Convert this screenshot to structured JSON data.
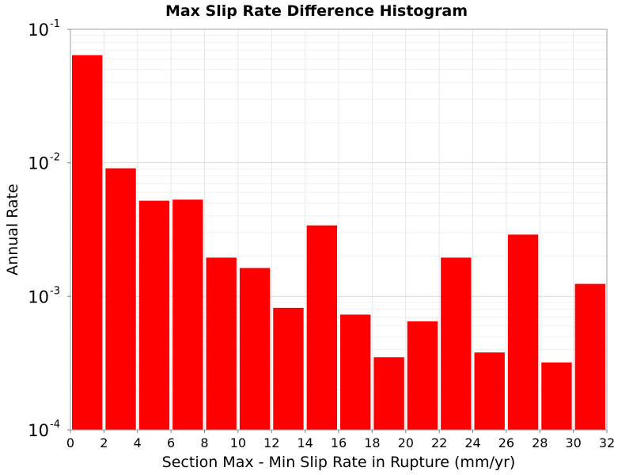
{
  "chart_data": {
    "type": "bar",
    "title": "Max Slip Rate Difference Histogram",
    "xlabel": "Section Max - Min Slip Rate in Rupture (mm/yr)",
    "ylabel": "Annual Rate",
    "xlim": [
      0,
      32
    ],
    "ylim": [
      0.0001,
      0.1
    ],
    "yscale": "log",
    "grid": true,
    "bar_color": "#ff0000",
    "bin_width": 2,
    "x": [
      1,
      3,
      5,
      7,
      9,
      11,
      13,
      15,
      17,
      19,
      21,
      23,
      25,
      27,
      29,
      31
    ],
    "values": [
      0.064,
      0.0091,
      0.0052,
      0.0053,
      0.00195,
      0.00163,
      0.00082,
      0.0034,
      0.00073,
      0.00035,
      0.00065,
      0.00195,
      0.00038,
      0.0029,
      0.00032,
      0.00124
    ],
    "xticks": [
      "0",
      "2",
      "4",
      "6",
      "8",
      "10",
      "12",
      "14",
      "16",
      "18",
      "20",
      "22",
      "24",
      "26",
      "28",
      "30",
      "32"
    ],
    "yticks": [
      {
        "base": "10",
        "exp": "-1"
      },
      {
        "base": "10",
        "exp": "-2"
      },
      {
        "base": "10",
        "exp": "-3"
      },
      {
        "base": "10",
        "exp": "-4"
      }
    ]
  }
}
